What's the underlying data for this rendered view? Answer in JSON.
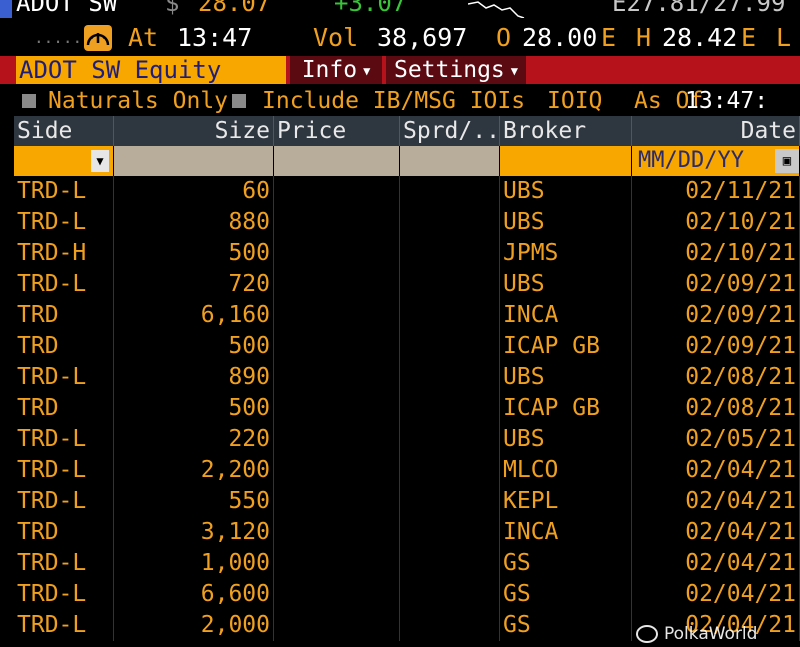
{
  "ticker": {
    "symbol": "ADOT SW",
    "currency": "$",
    "last": "28.07",
    "change": "+3.07",
    "bid_ask": "E27.81/27.99"
  },
  "quote": {
    "at_label": "At",
    "at_time": "13:47",
    "vol_label": "Vol",
    "vol_value": "38,697",
    "open_label": "O",
    "open_value": "28.00",
    "open_suffix": "E",
    "high_label": "H",
    "high_value": "28.42",
    "high_suffix": "E",
    "low_label": "L"
  },
  "toolbar": {
    "security": "ADOT SW Equity",
    "info_label": "Info",
    "settings_label": "Settings"
  },
  "options": {
    "naturals_only": "Naturals Only",
    "include_ib": "Include IB/MSG IOIs",
    "ioiq": "IOIQ",
    "as_of_label": "As Of",
    "as_of_time": "13:47:"
  },
  "table": {
    "headers": {
      "side": "Side",
      "size": "Size",
      "price": "Price",
      "sprd": "Sprd/...",
      "broker": "Broker",
      "date": "Date"
    },
    "date_placeholder": "MM/DD/YY",
    "rows": [
      {
        "side": "TRD-L",
        "size": "60",
        "broker": "UBS",
        "date": "02/11/21"
      },
      {
        "side": "TRD-L",
        "size": "880",
        "broker": "UBS",
        "date": "02/10/21"
      },
      {
        "side": "TRD-H",
        "size": "500",
        "broker": "JPMS",
        "date": "02/10/21"
      },
      {
        "side": "TRD-L",
        "size": "720",
        "broker": "UBS",
        "date": "02/09/21"
      },
      {
        "side": "TRD",
        "size": "6,160",
        "broker": "INCA",
        "date": "02/09/21"
      },
      {
        "side": "TRD",
        "size": "500",
        "broker": "ICAP GB",
        "date": "02/09/21"
      },
      {
        "side": "TRD-L",
        "size": "890",
        "broker": "UBS",
        "date": "02/08/21"
      },
      {
        "side": "TRD",
        "size": "500",
        "broker": "ICAP GB",
        "date": "02/08/21"
      },
      {
        "side": "TRD-L",
        "size": "220",
        "broker": "UBS",
        "date": "02/05/21"
      },
      {
        "side": "TRD-L",
        "size": "2,200",
        "broker": "MLCO",
        "date": "02/04/21"
      },
      {
        "side": "TRD-L",
        "size": "550",
        "broker": "KEPL",
        "date": "02/04/21"
      },
      {
        "side": "TRD",
        "size": "3,120",
        "broker": "INCA",
        "date": "02/04/21"
      },
      {
        "side": "TRD-L",
        "size": "1,000",
        "broker": "GS",
        "date": "02/04/21"
      },
      {
        "side": "TRD-L",
        "size": "6,600",
        "broker": "GS",
        "date": "02/04/21"
      },
      {
        "side": "TRD-L",
        "size": "2,000",
        "broker": "GS",
        "date": "02/04/21"
      }
    ]
  },
  "watermark": "PolkaWorld",
  "colors": {
    "amber": "#f0a020",
    "orange_field": "#f7a700",
    "red_bar": "#b5121b",
    "header_bg": "#2e3640",
    "background": "#000000"
  },
  "icons": {
    "gauge": "speedometer-icon",
    "dropdown": "chevron-down-icon",
    "calendar": "calendar-icon"
  }
}
